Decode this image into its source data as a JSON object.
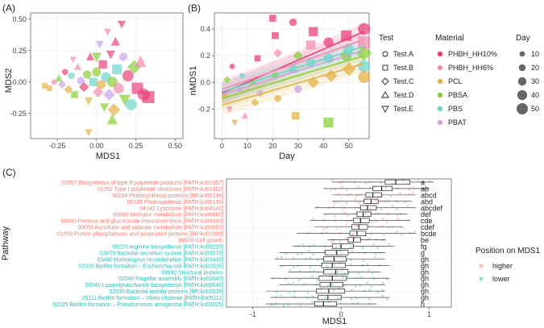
{
  "colors": {
    "PHBH_HH10%": "#e8417c",
    "PHBH_HH6%": "#f08fb0",
    "PCL": "#e6b14a",
    "PBSA": "#8ccf3c",
    "PBS": "#6fd4cc",
    "PBAT": "#c7a6e6",
    "higher": "#f07b74",
    "lower": "#2bbab4"
  },
  "chart_data": [
    {
      "type": "scatter",
      "panel": "(A)",
      "xlabel": "MDS1",
      "ylabel": "MDS2",
      "xlim": [
        -0.42,
        0.55
      ],
      "ylim": [
        -0.45,
        0.55
      ],
      "xticks": [
        "-0.25",
        "0.00",
        "0.25",
        "0.50"
      ],
      "xtick_values": [
        -0.25,
        0,
        0.25,
        0.5
      ],
      "yticks": [
        "-0.25",
        "0.00",
        "0.25",
        "0.50"
      ],
      "ytick_values": [
        -0.25,
        0,
        0.25,
        0.5
      ],
      "points": [
        {
          "x": -0.33,
          "y": -0.03,
          "m": "PCL",
          "s": "square",
          "d": 10
        },
        {
          "x": -0.3,
          "y": -0.05,
          "m": "PCL",
          "s": "square",
          "d": 10
        },
        {
          "x": -0.27,
          "y": 0.0,
          "m": "PHBH_HH6%",
          "s": "circle",
          "d": 10
        },
        {
          "x": -0.24,
          "y": 0.03,
          "m": "PBSA",
          "s": "triangle",
          "d": 15
        },
        {
          "x": -0.22,
          "y": -0.02,
          "m": "PBAT",
          "s": "diamond",
          "d": 15
        },
        {
          "x": -0.2,
          "y": 0.08,
          "m": "PHBH_HH10%",
          "s": "circle",
          "d": 15
        },
        {
          "x": -0.18,
          "y": -0.06,
          "m": "PCL",
          "s": "diamond",
          "d": 20
        },
        {
          "x": -0.16,
          "y": 0.05,
          "m": "PBS",
          "s": "circle",
          "d": 20
        },
        {
          "x": -0.14,
          "y": -0.1,
          "m": "PBSA",
          "s": "square",
          "d": 20
        },
        {
          "x": -0.12,
          "y": 0.12,
          "m": "PHBH_HH6%",
          "s": "triangle",
          "d": 15
        },
        {
          "x": -0.1,
          "y": 0.01,
          "m": "PBAT",
          "s": "circle",
          "d": 25
        },
        {
          "x": -0.08,
          "y": -0.04,
          "m": "PHBH_HH10%",
          "s": "diamond",
          "d": 25
        },
        {
          "x": -0.06,
          "y": 0.06,
          "m": "PBSA",
          "s": "circle",
          "d": 30
        },
        {
          "x": -0.05,
          "y": -0.15,
          "m": "PCL",
          "s": "tri_down",
          "d": 20
        },
        {
          "x": -0.04,
          "y": 0.2,
          "m": "PHBH_HH10%",
          "s": "triangle",
          "d": 20
        },
        {
          "x": -0.02,
          "y": 0.0,
          "m": "PBS",
          "s": "square",
          "d": 30
        },
        {
          "x": 0.0,
          "y": 0.08,
          "m": "PBSA",
          "s": "circle",
          "d": 35
        },
        {
          "x": 0.01,
          "y": -0.08,
          "m": "PHBH_HH6%",
          "s": "diamond",
          "d": 30
        },
        {
          "x": 0.02,
          "y": 0.3,
          "m": "PBAT",
          "s": "tri_down",
          "d": 20
        },
        {
          "x": 0.03,
          "y": -0.02,
          "m": "PCL",
          "s": "circle",
          "d": 35
        },
        {
          "x": 0.04,
          "y": 0.14,
          "m": "PHBH_HH10%",
          "s": "square",
          "d": 30
        },
        {
          "x": 0.05,
          "y": -0.2,
          "m": "PBSA",
          "s": "tri_down",
          "d": 25
        },
        {
          "x": 0.06,
          "y": 0.04,
          "m": "PBS",
          "s": "circle",
          "d": 40
        },
        {
          "x": 0.07,
          "y": 0.4,
          "m": "PHBH_HH6%",
          "s": "tri_down",
          "d": 15
        },
        {
          "x": 0.08,
          "y": -0.1,
          "m": "PBAT",
          "s": "diamond",
          "d": 35
        },
        {
          "x": 0.09,
          "y": 0.22,
          "m": "PHBH_HH10%",
          "s": "tri_down",
          "d": 25
        },
        {
          "x": 0.1,
          "y": 0.0,
          "m": "PBSA",
          "s": "circle",
          "d": 45
        },
        {
          "x": 0.11,
          "y": -0.22,
          "m": "PCL",
          "s": "diamond",
          "d": 40
        },
        {
          "x": 0.12,
          "y": 0.32,
          "m": "PHBH_HH10%",
          "s": "triangle",
          "d": 25
        },
        {
          "x": 0.13,
          "y": 0.1,
          "m": "PBS",
          "s": "square",
          "d": 40
        },
        {
          "x": 0.14,
          "y": -0.05,
          "m": "PHBH_HH6%",
          "s": "circle",
          "d": 45
        },
        {
          "x": 0.16,
          "y": 0.46,
          "m": "PHBH_HH10%",
          "s": "tri_down",
          "d": 20
        },
        {
          "x": 0.17,
          "y": 0.2,
          "m": "PBAT",
          "s": "circle",
          "d": 30
        },
        {
          "x": 0.18,
          "y": -0.14,
          "m": "PBSA",
          "s": "tri_down",
          "d": 40
        },
        {
          "x": 0.2,
          "y": 0.05,
          "m": "PHBH_HH10%",
          "s": "circle",
          "d": 50
        },
        {
          "x": 0.22,
          "y": -0.18,
          "m": "PBS",
          "s": "circle",
          "d": 50
        },
        {
          "x": 0.24,
          "y": 0.12,
          "m": "PBSA",
          "s": "diamond",
          "d": 45
        },
        {
          "x": 0.26,
          "y": -0.05,
          "m": "PHBH_HH10%",
          "s": "square",
          "d": 50
        },
        {
          "x": 0.28,
          "y": 0.16,
          "m": "PHBH_HH6%",
          "s": "triangle",
          "d": 40
        },
        {
          "x": 0.3,
          "y": -0.1,
          "m": "PHBH_HH10%",
          "s": "circle",
          "d": 55
        },
        {
          "x": 0.33,
          "y": -0.12,
          "m": "PHBH_HH10%",
          "s": "square",
          "d": 55
        },
        {
          "x": -0.05,
          "y": -0.4,
          "m": "PCL",
          "s": "tri_down",
          "d": 15
        },
        {
          "x": 0.0,
          "y": 0.2,
          "m": "PBSA",
          "s": "tri_down",
          "d": 30
        },
        {
          "x": -0.15,
          "y": 0.18,
          "m": "PHBH_HH6%",
          "s": "tri_down",
          "d": 10
        },
        {
          "x": 0.1,
          "y": -0.3,
          "m": "PBSA",
          "s": "triangle",
          "d": 35
        }
      ]
    },
    {
      "type": "scatter",
      "panel": "(B)",
      "xlabel": "Day",
      "ylabel": "nMDS1",
      "xlim": [
        -3,
        58
      ],
      "ylim": [
        -0.42,
        0.52
      ],
      "xticks": [
        "0",
        "10",
        "20",
        "30",
        "40",
        "50"
      ],
      "xtick_values": [
        0,
        10,
        20,
        30,
        40,
        50
      ],
      "yticks": [
        "-0.2",
        "0.0",
        "0.2",
        "0.4"
      ],
      "ytick_values": [
        -0.2,
        0,
        0.2,
        0.4
      ],
      "trendlines": [
        {
          "m": "PHBH_HH10%",
          "y0": -0.08,
          "y1": 0.38
        },
        {
          "m": "PHBH_HH6%",
          "y0": -0.05,
          "y1": 0.32
        },
        {
          "m": "PBS",
          "y0": -0.07,
          "y1": 0.27
        },
        {
          "m": "PBAT",
          "y0": -0.09,
          "y1": 0.24
        },
        {
          "m": "PBSA",
          "y0": -0.12,
          "y1": 0.2
        },
        {
          "m": "PCL",
          "y0": -0.17,
          "y1": 0.14
        }
      ],
      "points": [
        {
          "x": 1,
          "y": -0.1,
          "m": "PCL",
          "s": "square",
          "d": 10
        },
        {
          "x": 2,
          "y": 0.02,
          "m": "PBSA",
          "s": "diamond",
          "d": 10
        },
        {
          "x": 3,
          "y": -0.2,
          "m": "PHBH_HH6%",
          "s": "tri_down",
          "d": 10
        },
        {
          "x": 4,
          "y": 0.12,
          "m": "PHBH_HH10%",
          "s": "circle",
          "d": 10
        },
        {
          "x": 5,
          "y": -0.3,
          "m": "PCL",
          "s": "tri_down",
          "d": 10
        },
        {
          "x": 7,
          "y": -0.05,
          "m": "PBAT",
          "s": "triangle",
          "d": 10
        },
        {
          "x": 8,
          "y": 0.05,
          "m": "PBS",
          "s": "circle",
          "d": 10
        },
        {
          "x": 9,
          "y": -0.25,
          "m": "PHBH_HH6%",
          "s": "triangle",
          "d": 10
        },
        {
          "x": 12,
          "y": 0.0,
          "m": "PBSA",
          "s": "circle",
          "d": 15
        },
        {
          "x": 13,
          "y": -0.15,
          "m": "PCL",
          "s": "diamond",
          "d": 15
        },
        {
          "x": 14,
          "y": 0.18,
          "m": "PHBH_HH10%",
          "s": "square",
          "d": 15
        },
        {
          "x": 15,
          "y": -0.08,
          "m": "PBAT",
          "s": "circle",
          "d": 15
        },
        {
          "x": 20,
          "y": 0.48,
          "m": "PHBH_HH10%",
          "s": "square",
          "d": 20
        },
        {
          "x": 21,
          "y": 0.35,
          "m": "PHBH_HH10%",
          "s": "square",
          "d": 20
        },
        {
          "x": 21,
          "y": 0.05,
          "m": "PBSA",
          "s": "circle",
          "d": 20
        },
        {
          "x": 22,
          "y": -0.12,
          "m": "PCL",
          "s": "circle",
          "d": 20
        },
        {
          "x": 22,
          "y": 0.22,
          "m": "PHBH_HH6%",
          "s": "diamond",
          "d": 20
        },
        {
          "x": 28,
          "y": 0.45,
          "m": "PHBH_HH10%",
          "s": "circle",
          "d": 25
        },
        {
          "x": 28,
          "y": 0.1,
          "m": "PBS",
          "s": "square",
          "d": 25
        },
        {
          "x": 29,
          "y": -0.25,
          "m": "PCL",
          "s": "square",
          "d": 25
        },
        {
          "x": 30,
          "y": 0.2,
          "m": "PBSA",
          "s": "diamond",
          "d": 25
        },
        {
          "x": 30,
          "y": -0.05,
          "m": "PBAT",
          "s": "circle",
          "d": 25
        },
        {
          "x": 35,
          "y": 0.28,
          "m": "PHBH_HH6%",
          "s": "square",
          "d": 35
        },
        {
          "x": 35,
          "y": 0.15,
          "m": "PBS",
          "s": "circle",
          "d": 35
        },
        {
          "x": 36,
          "y": 0.0,
          "m": "PCL",
          "s": "diamond",
          "d": 35
        },
        {
          "x": 36,
          "y": 0.38,
          "m": "PHBH_HH10%",
          "s": "square",
          "d": 35
        },
        {
          "x": 42,
          "y": 0.3,
          "m": "PHBH_HH10%",
          "s": "circle",
          "d": 40
        },
        {
          "x": 42,
          "y": -0.3,
          "m": "PBSA",
          "s": "square",
          "d": 40
        },
        {
          "x": 42,
          "y": 0.18,
          "m": "PBS",
          "s": "circle",
          "d": 40
        },
        {
          "x": 43,
          "y": 0.05,
          "m": "PCL",
          "s": "diamond",
          "d": 40
        },
        {
          "x": 49,
          "y": 0.35,
          "m": "PHBH_HH10%",
          "s": "square",
          "d": 45
        },
        {
          "x": 49,
          "y": 0.2,
          "m": "PBSA",
          "s": "circle",
          "d": 45
        },
        {
          "x": 50,
          "y": 0.1,
          "m": "PCL",
          "s": "diamond",
          "d": 45
        },
        {
          "x": 50,
          "y": 0.25,
          "m": "PBS",
          "s": "circle",
          "d": 45
        },
        {
          "x": 56,
          "y": 0.4,
          "m": "PHBH_HH10%",
          "s": "circle",
          "d": 55
        },
        {
          "x": 56,
          "y": 0.22,
          "m": "PBSA",
          "s": "diamond",
          "d": 55
        },
        {
          "x": 56,
          "y": 0.12,
          "m": "PBS",
          "s": "circle",
          "d": 55
        },
        {
          "x": 56,
          "y": 0.04,
          "m": "PCL",
          "s": "circle",
          "d": 55
        },
        {
          "x": 56,
          "y": 0.3,
          "m": "PHBH_HH6%",
          "s": "square",
          "d": 55
        }
      ]
    },
    {
      "type": "boxplot",
      "panel": "(C)",
      "xlabel": "MDS1",
      "ylabel": "Pathway",
      "xlim": [
        -1.3,
        1.25
      ],
      "xticks": [
        "-1",
        "0",
        "1"
      ],
      "xtick_values": [
        -1,
        0,
        1
      ],
      "rows": [
        {
          "label": "01057 Biosynthesis of type II polyketide products [PATH:ko01057]",
          "group": "higher",
          "q1": 0.5,
          "median": 0.62,
          "q3": 0.78,
          "wlo": -0.1,
          "whi": 1.05,
          "letters": "a"
        },
        {
          "label": "01052 Type I polyketide structures [PATH:ko01052]",
          "group": "higher",
          "q1": 0.36,
          "median": 0.46,
          "q3": 0.58,
          "wlo": -0.2,
          "whi": 1.0,
          "letters": "ab"
        },
        {
          "label": "00194 Photosynthesis proteins [BR:ko00194]",
          "group": "higher",
          "q1": 0.28,
          "median": 0.36,
          "q3": 0.46,
          "wlo": -0.1,
          "whi": 0.85,
          "letters": "abcd"
        },
        {
          "label": "00195 Photosynthesis [PATH:ko00195]",
          "group": "higher",
          "q1": 0.26,
          "median": 0.34,
          "q3": 0.42,
          "wlo": -0.1,
          "whi": 0.8,
          "letters": "abd"
        },
        {
          "label": "04142 Lysosome [PATH:ko04142]",
          "group": "higher",
          "q1": 0.22,
          "median": 0.3,
          "q3": 0.4,
          "wlo": -0.3,
          "whi": 0.85,
          "letters": "abcdef"
        },
        {
          "label": "00680 Methane metabolism [PATH:ko00680]",
          "group": "higher",
          "q1": 0.18,
          "median": 0.25,
          "q3": 0.34,
          "wlo": -0.2,
          "whi": 0.75,
          "letters": "def"
        },
        {
          "label": "00040 Pentose and glucuronate interconversions [PATH:ko00040]",
          "group": "higher",
          "q1": 0.14,
          "median": 0.22,
          "q3": 0.32,
          "wlo": -0.35,
          "whi": 0.78,
          "letters": "cde"
        },
        {
          "label": "00053 Ascorbate and aldarate metabolism [PATH:ko00053]",
          "group": "higher",
          "q1": 0.12,
          "median": 0.2,
          "q3": 0.3,
          "wlo": -0.3,
          "whi": 0.7,
          "letters": "cdef"
        },
        {
          "label": "01009 Protein phosphatases and associated proteins [BR:ko01009]",
          "group": "higher",
          "q1": 0.1,
          "median": 0.18,
          "q3": 0.28,
          "wlo": -0.5,
          "whi": 0.85,
          "letters": "bcde"
        },
        {
          "label": "99978 Cell growth",
          "group": "higher",
          "q1": 0.08,
          "median": 0.14,
          "q3": 0.22,
          "wlo": -0.15,
          "whi": 0.5,
          "letters": "be"
        },
        {
          "label": "00220 Arginine biosynthesis [PATH:ko00220]",
          "group": "lower",
          "q1": -0.1,
          "median": 0.0,
          "q3": 0.14,
          "wlo": -0.55,
          "whi": 0.6,
          "letters": "fg"
        },
        {
          "label": "03070 Bacterial secretion system [PATH:ko03070]",
          "group": "lower",
          "q1": -0.18,
          "median": -0.05,
          "q3": 0.08,
          "wlo": -0.7,
          "whi": 0.5,
          "letters": "g"
        },
        {
          "label": "03440 Homologous recombination [PATH:ko03440]",
          "group": "lower",
          "q1": -0.2,
          "median": -0.08,
          "q3": 0.06,
          "wlo": -0.75,
          "whi": 0.5,
          "letters": "gh"
        },
        {
          "label": "02026 Biofilm formation – Escherichia coli [PATH:ko02026]",
          "group": "lower",
          "q1": -0.22,
          "median": -0.1,
          "q3": 0.05,
          "wlo": -0.7,
          "whi": 0.55,
          "letters": "gh"
        },
        {
          "label": "99992 Structural proteins",
          "group": "lower",
          "q1": -0.2,
          "median": -0.06,
          "q3": 0.08,
          "wlo": -0.6,
          "whi": 0.45,
          "letters": "gh"
        },
        {
          "label": "02040 Flagellar assembly [PATH:ko02040]",
          "group": "lower",
          "q1": -0.25,
          "median": -0.1,
          "q3": 0.06,
          "wlo": -0.8,
          "whi": 0.55,
          "letters": "gh"
        },
        {
          "label": "00540 Lipopolysaccharide biosynthesis [PATH:ko00540]",
          "group": "lower",
          "q1": -0.24,
          "median": -0.12,
          "q3": 0.02,
          "wlo": -0.7,
          "whi": 0.5,
          "letters": "gh"
        },
        {
          "label": "02035 Bacterial motility proteins [BR:ko02035]",
          "group": "lower",
          "q1": -0.28,
          "median": -0.14,
          "q3": 0.04,
          "wlo": -0.85,
          "whi": 0.5,
          "letters": "gh"
        },
        {
          "label": "05111 Biofilm formation – Vibrio cholerae [PATH:ko05111]",
          "group": "lower",
          "q1": -0.26,
          "median": -0.15,
          "q3": 0.0,
          "wlo": -0.8,
          "whi": 0.55,
          "letters": "gh"
        },
        {
          "label": "02025 Biofilm formation – Pseudomonas aeruginosa [PATH:ko02025]",
          "group": "lower",
          "q1": -0.3,
          "median": -0.2,
          "q3": -0.05,
          "wlo": -0.85,
          "whi": 0.4,
          "letters": "h"
        }
      ]
    }
  ],
  "legend": {
    "test_title": "Test",
    "tests": [
      {
        "label": "Test.A",
        "shape": "circle"
      },
      {
        "label": "Test.B",
        "shape": "square"
      },
      {
        "label": "Test.C",
        "shape": "diamond"
      },
      {
        "label": "Test.D",
        "shape": "triangle"
      },
      {
        "label": "Test.E",
        "shape": "tri_down"
      }
    ],
    "material_title": "Material",
    "materials": [
      "PHBH_HH10%",
      "PHBH_HH6%",
      "PCL",
      "PBSA",
      "PBS",
      "PBAT"
    ],
    "day_title": "Day",
    "days": [
      "10",
      "20",
      "30",
      "40",
      "50"
    ],
    "position_title": "Position on MDS1",
    "positions": [
      "higher",
      "lower"
    ]
  }
}
